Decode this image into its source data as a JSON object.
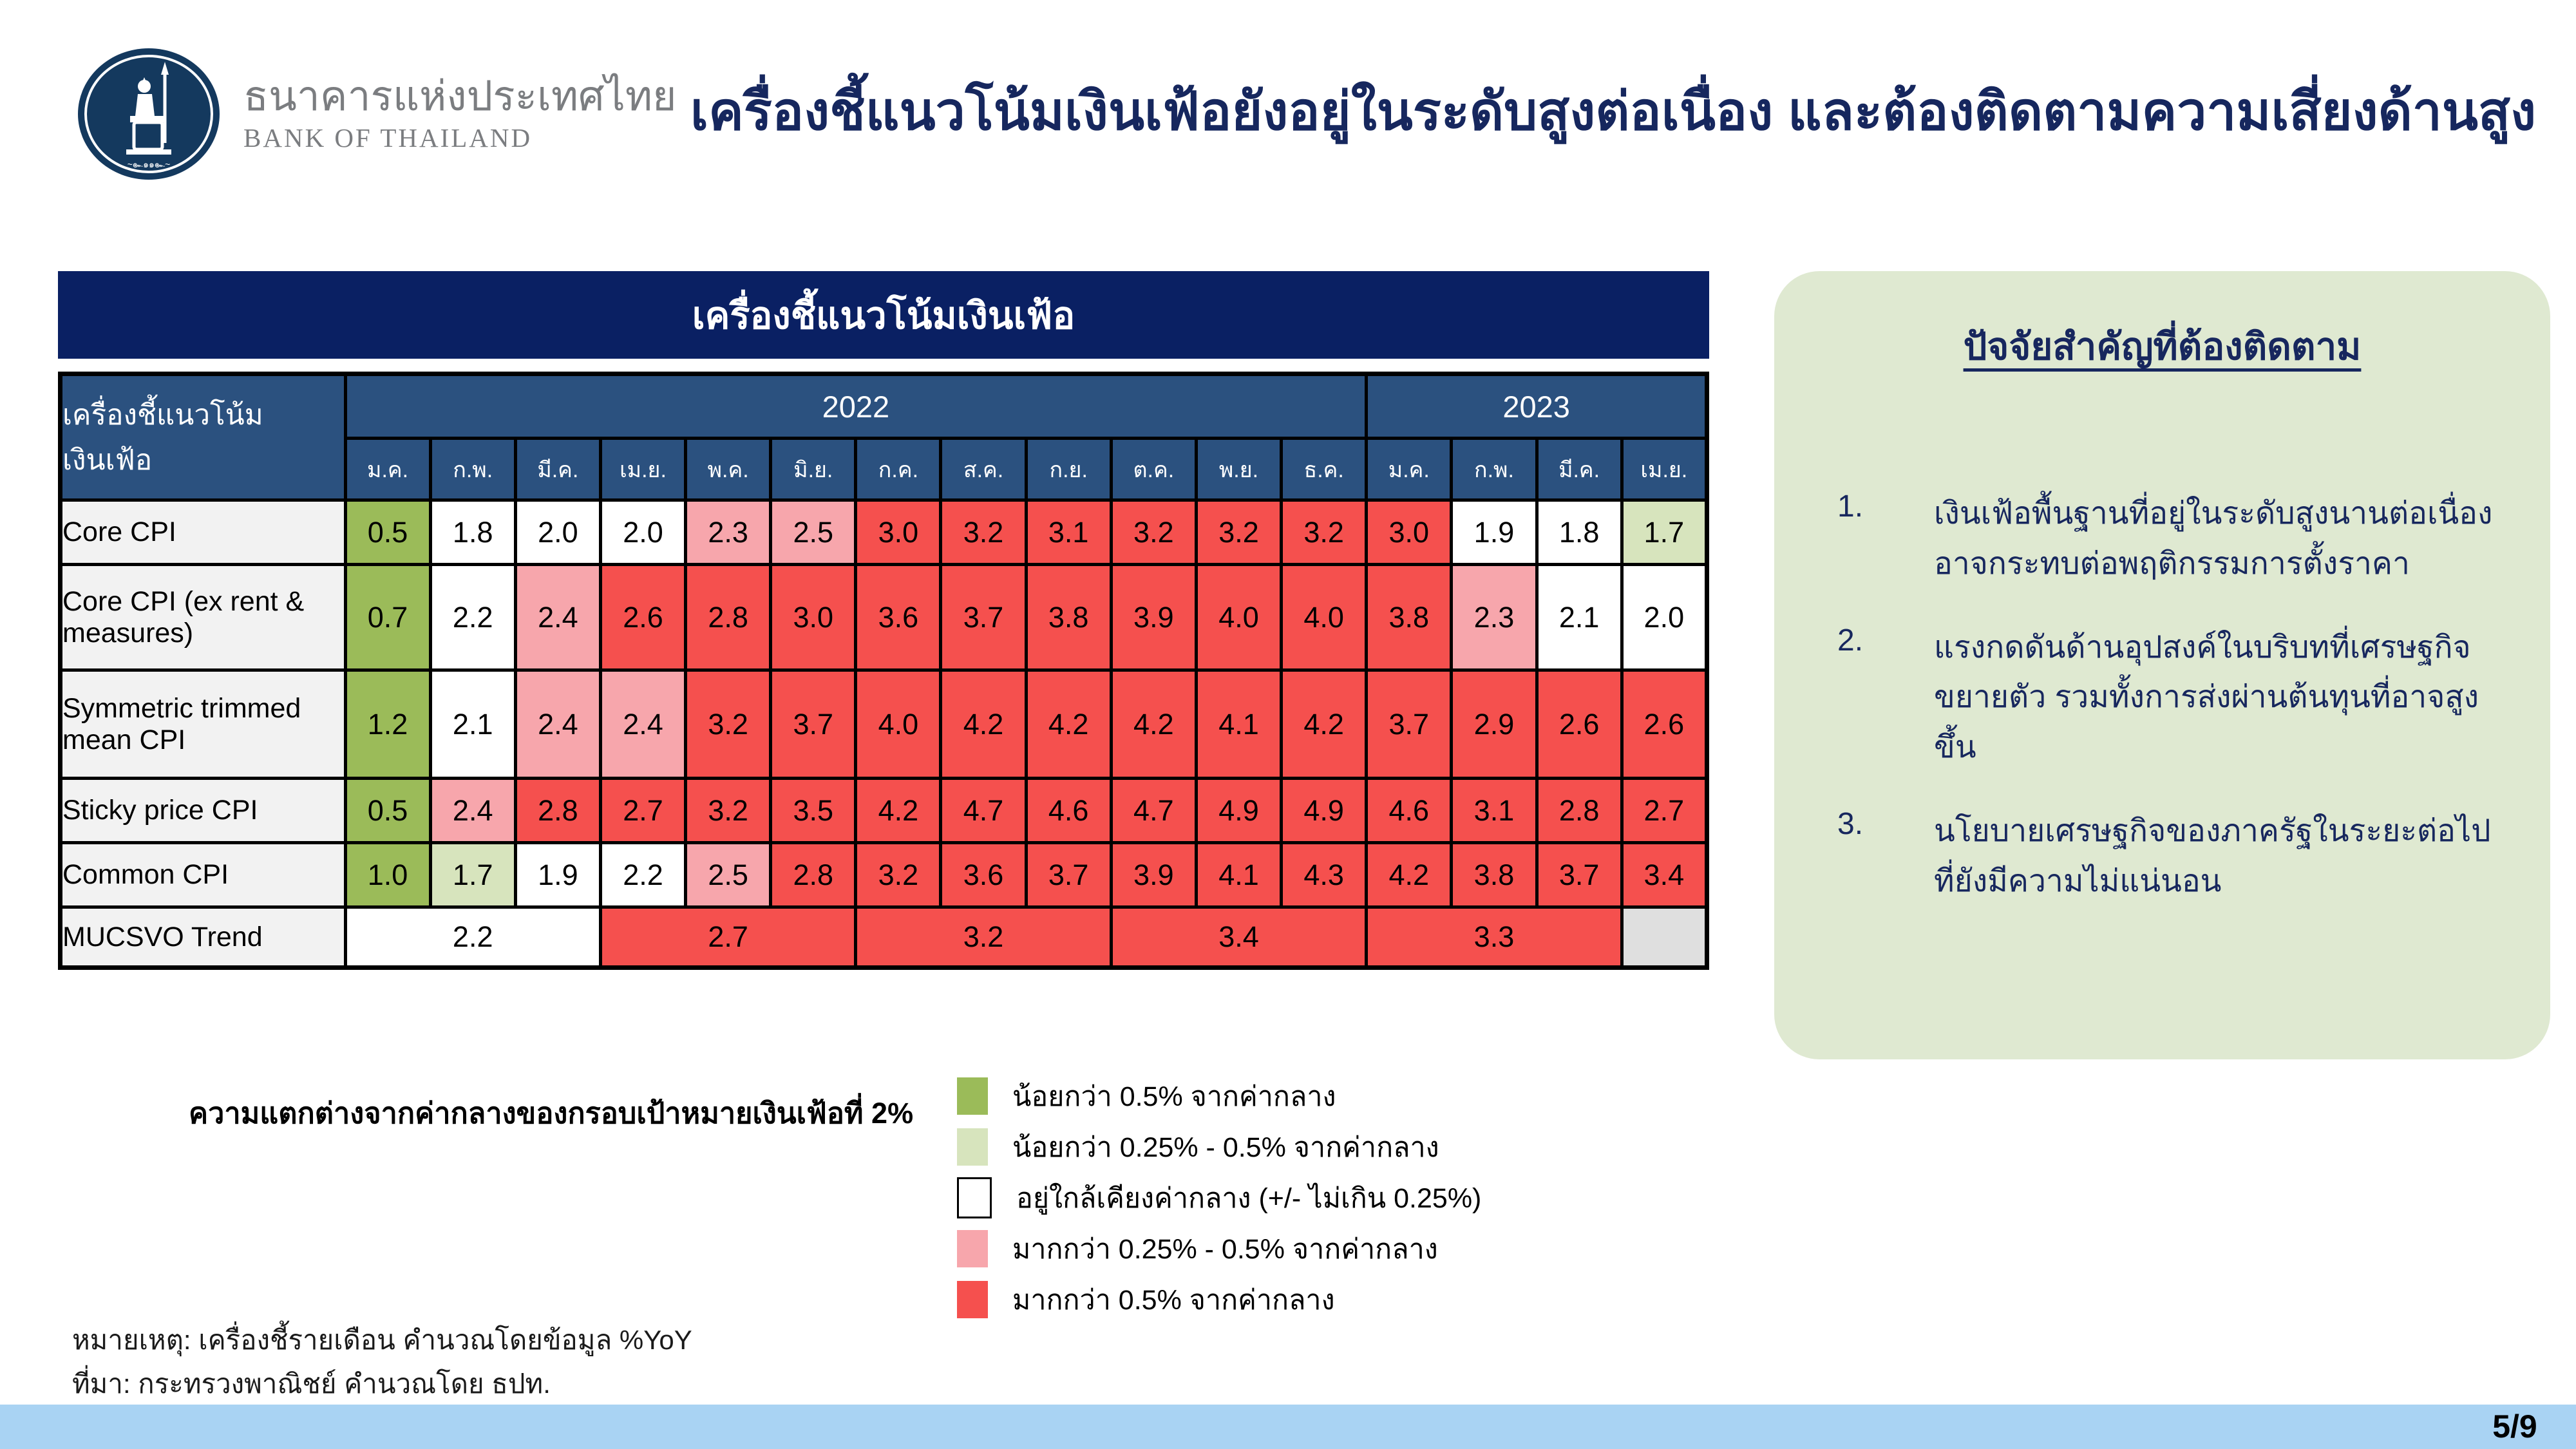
{
  "slide": {
    "title": "เครื่องชี้แนวโน้มเงินเฟ้อยังอยู่ในระดับสูงต่อเนื่อง และต้องติดตามความเสี่ยงด้านสูง",
    "page_number": "5/9"
  },
  "logo": {
    "name_th": "ธนาคารแห่งประเทศไทย",
    "name_en": "BANK OF THAILAND"
  },
  "colors": {
    "green": "#9bbb59",
    "light_green": "#d7e4bd",
    "white": "#ffffff",
    "pink": "#f7a6ac",
    "red": "#f5504e",
    "gray": "#dfdfdf",
    "banner_navy": "#0a2063",
    "header_blue": "#2b517f",
    "panel_green": "#dfe9d1",
    "bottom_bar_blue": "#a9d3f3"
  },
  "table": {
    "banner": "เครื่องชี้แนวโน้มเงินเฟ้อ",
    "header_label": "เครื่องชี้แนวโน้มเงินเฟ้อ",
    "years": [
      [
        "2022",
        12
      ],
      [
        "2023",
        4
      ]
    ],
    "months": [
      "ม.ค.",
      "ก.พ.",
      "มี.ค.",
      "เม.ย.",
      "พ.ค.",
      "มิ.ย.",
      "ก.ค.",
      "ส.ค.",
      "ก.ย.",
      "ต.ค.",
      "พ.ย.",
      "ธ.ค.",
      "ม.ค.",
      "ก.พ.",
      "มี.ค.",
      "เม.ย."
    ],
    "rows": [
      {
        "label": "Core CPI",
        "cells": [
          [
            "0.5",
            "green"
          ],
          [
            "1.8",
            "white"
          ],
          [
            "2.0",
            "white"
          ],
          [
            "2.0",
            "white"
          ],
          [
            "2.3",
            "pink"
          ],
          [
            "2.5",
            "pink"
          ],
          [
            "3.0",
            "red"
          ],
          [
            "3.2",
            "red"
          ],
          [
            "3.1",
            "red"
          ],
          [
            "3.2",
            "red"
          ],
          [
            "3.2",
            "red"
          ],
          [
            "3.2",
            "red"
          ],
          [
            "3.0",
            "red"
          ],
          [
            "1.9",
            "white"
          ],
          [
            "1.8",
            "white"
          ],
          [
            "1.7",
            "light_green"
          ]
        ]
      },
      {
        "label": "Core CPI (ex rent & measures)",
        "cells": [
          [
            "0.7",
            "green"
          ],
          [
            "2.2",
            "white"
          ],
          [
            "2.4",
            "pink"
          ],
          [
            "2.6",
            "red"
          ],
          [
            "2.8",
            "red"
          ],
          [
            "3.0",
            "red"
          ],
          [
            "3.6",
            "red"
          ],
          [
            "3.7",
            "red"
          ],
          [
            "3.8",
            "red"
          ],
          [
            "3.9",
            "red"
          ],
          [
            "4.0",
            "red"
          ],
          [
            "4.0",
            "red"
          ],
          [
            "3.8",
            "red"
          ],
          [
            "2.3",
            "pink"
          ],
          [
            "2.1",
            "white"
          ],
          [
            "2.0",
            "white"
          ]
        ]
      },
      {
        "label": "Symmetric trimmed mean CPI",
        "cells": [
          [
            "1.2",
            "green"
          ],
          [
            "2.1",
            "white"
          ],
          [
            "2.4",
            "pink"
          ],
          [
            "2.4",
            "pink"
          ],
          [
            "3.2",
            "red"
          ],
          [
            "3.7",
            "red"
          ],
          [
            "4.0",
            "red"
          ],
          [
            "4.2",
            "red"
          ],
          [
            "4.2",
            "red"
          ],
          [
            "4.2",
            "red"
          ],
          [
            "4.1",
            "red"
          ],
          [
            "4.2",
            "red"
          ],
          [
            "3.7",
            "red"
          ],
          [
            "2.9",
            "red"
          ],
          [
            "2.6",
            "red"
          ],
          [
            "2.6",
            "red"
          ]
        ]
      },
      {
        "label": "Sticky price CPI",
        "cells": [
          [
            "0.5",
            "green"
          ],
          [
            "2.4",
            "pink"
          ],
          [
            "2.8",
            "red"
          ],
          [
            "2.7",
            "red"
          ],
          [
            "3.2",
            "red"
          ],
          [
            "3.5",
            "red"
          ],
          [
            "4.2",
            "red"
          ],
          [
            "4.7",
            "red"
          ],
          [
            "4.6",
            "red"
          ],
          [
            "4.7",
            "red"
          ],
          [
            "4.9",
            "red"
          ],
          [
            "4.9",
            "red"
          ],
          [
            "4.6",
            "red"
          ],
          [
            "3.1",
            "red"
          ],
          [
            "2.8",
            "red"
          ],
          [
            "2.7",
            "red"
          ]
        ]
      },
      {
        "label": "Common CPI",
        "cells": [
          [
            "1.0",
            "green"
          ],
          [
            "1.7",
            "light_green"
          ],
          [
            "1.9",
            "white"
          ],
          [
            "2.2",
            "white"
          ],
          [
            "2.5",
            "pink"
          ],
          [
            "2.8",
            "red"
          ],
          [
            "3.2",
            "red"
          ],
          [
            "3.6",
            "red"
          ],
          [
            "3.7",
            "red"
          ],
          [
            "3.9",
            "red"
          ],
          [
            "4.1",
            "red"
          ],
          [
            "4.3",
            "red"
          ],
          [
            "4.2",
            "red"
          ],
          [
            "3.8",
            "red"
          ],
          [
            "3.7",
            "red"
          ],
          [
            "3.4",
            "red"
          ]
        ]
      },
      {
        "label": "MUCSVO Trend",
        "cells": [
          [
            "2.2",
            "white",
            3
          ],
          [
            "2.7",
            "red",
            3
          ],
          [
            "3.2",
            "red",
            3
          ],
          [
            "3.4",
            "red",
            3
          ],
          [
            "3.3",
            "red",
            3
          ],
          [
            "",
            "gray",
            1
          ]
        ]
      }
    ]
  },
  "legend": {
    "heading": "ความแตกต่างจากค่ากลางของกรอบเป้าหมายเงินเฟ้อที่ 2%",
    "items": [
      {
        "color": "green",
        "label": "น้อยกว่า 0.5% จากค่ากลาง"
      },
      {
        "color": "light_green",
        "label": "น้อยกว่า 0.25% - 0.5% จากค่ากลาง"
      },
      {
        "color": "white",
        "label": "อยู่ใกล้เคียงค่ากลาง (+/- ไม่เกิน 0.25%)"
      },
      {
        "color": "pink",
        "label": "มากกว่า 0.25% - 0.5% จากค่ากลาง"
      },
      {
        "color": "red",
        "label": "มากกว่า 0.5% จากค่ากลาง"
      }
    ]
  },
  "notes": [
    "หมายเหตุ: เครื่องชี้รายเดือน คำนวณโดยข้อมูล %YoY",
    "ที่มา: กระทรวงพาณิชย์ คำนวณโดย ธปท."
  ],
  "watch_panel": {
    "title": "ปัจจัยสำคัญที่ต้องติดตาม",
    "items": [
      "เงินเฟ้อพื้นฐานที่อยู่ในระดับสูงนานต่อเนื่องอาจกระทบต่อพฤติกรรมการตั้งราคา",
      "แรงกดดันด้านอุปสงค์ในบริบทที่เศรษฐกิจขยายตัว รวมทั้งการส่งผ่านต้นทุนที่อาจสูงขึ้น",
      "นโยบายเศรษฐกิจของภาครัฐในระยะต่อไปที่ยังมีความไม่แน่นอน"
    ]
  }
}
